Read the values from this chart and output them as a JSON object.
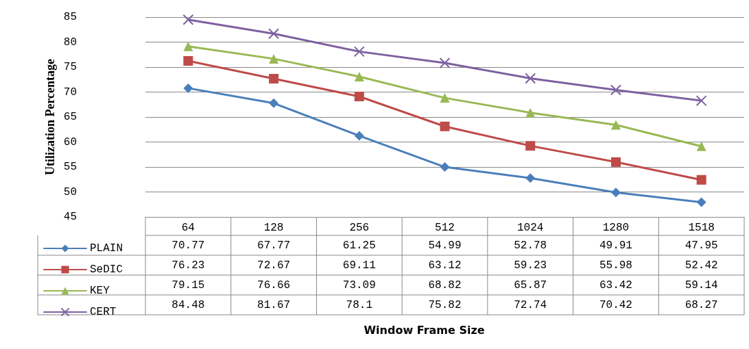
{
  "chart_data": {
    "type": "line",
    "ylabel": "Utilization Percentage",
    "annotations": [
      "Window Frame Size"
    ],
    "categories": [
      "64",
      "128",
      "256",
      "512",
      "1024",
      "1280",
      "1518"
    ],
    "series": [
      {
        "name": "PLAIN",
        "color": "#4a7ebb",
        "marker": "diamond",
        "values": [
          70.77,
          67.77,
          61.25,
          54.99,
          52.78,
          49.91,
          47.95
        ]
      },
      {
        "name": "SeDIC",
        "color": "#be4b48",
        "marker": "square",
        "values": [
          76.23,
          72.67,
          69.11,
          63.12,
          59.23,
          55.98,
          52.42
        ]
      },
      {
        "name": "KEY",
        "color": "#98b954",
        "marker": "triangle",
        "values": [
          79.15,
          76.66,
          73.09,
          68.82,
          65.87,
          63.42,
          59.14
        ]
      },
      {
        "name": "CERT",
        "color": "#7d60a0",
        "marker": "cross",
        "values": [
          84.48,
          81.67,
          78.1,
          75.82,
          72.74,
          70.42,
          68.27
        ]
      }
    ],
    "ylim": [
      45,
      85
    ],
    "yticks": [
      45,
      50,
      55,
      60,
      65,
      70,
      75,
      80,
      85
    ],
    "grid": "y",
    "legend": "bottom",
    "data_labels": true
  }
}
